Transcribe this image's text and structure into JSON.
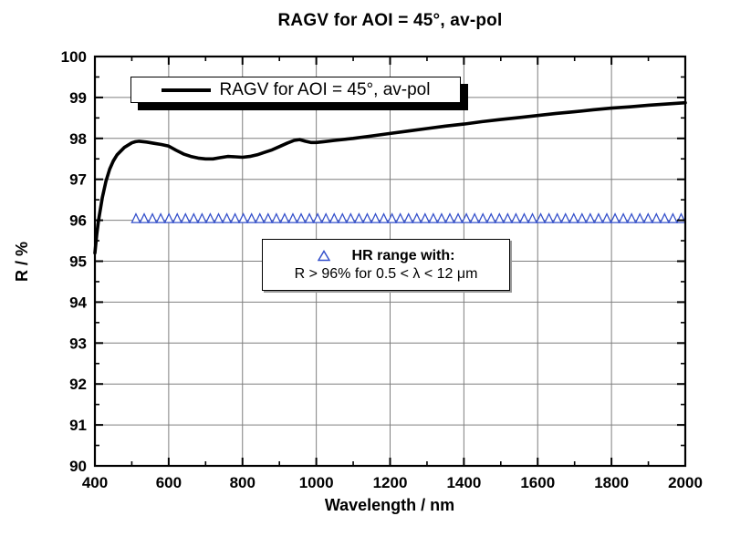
{
  "title": "RAGV for AOI = 45°, av-pol",
  "colors": {
    "background": "#ffffff",
    "curve": "#000000",
    "marker_blue": "#3450cb",
    "grid": "#7f7f7f",
    "frame": "#000000",
    "text": "#000000"
  },
  "legend": {
    "label": "RAGV for AOI = 45°, av-pol"
  },
  "annotation": {
    "marker": "open-triangle",
    "line1": "HR range with:",
    "line2": "R > 96% for 0.5 < λ < 12 μm"
  },
  "chart_data": {
    "type": "line",
    "title": "RAGV for AOI = 45°, av-pol",
    "xlabel": "Wavelength / nm",
    "ylabel": "R / %",
    "xlim": [
      400,
      2000
    ],
    "ylim": [
      90,
      100
    ],
    "x_major_ticks": [
      400,
      600,
      800,
      1000,
      1200,
      1400,
      1600,
      1800,
      2000
    ],
    "x_minor_step": 100,
    "y_major_ticks": [
      90,
      91,
      92,
      93,
      94,
      95,
      96,
      97,
      98,
      99,
      100
    ],
    "y_minor_step": 0.5,
    "grid": true,
    "legend_position": "top-left-inside",
    "series": [
      {
        "name": "RAGV for AOI = 45°, av-pol",
        "type": "line",
        "color": "#000000",
        "width": 3.6,
        "x": [
          400,
          405,
          410,
          420,
          430,
          440,
          450,
          460,
          480,
          500,
          510,
          520,
          540,
          560,
          580,
          600,
          620,
          640,
          660,
          680,
          700,
          720,
          740,
          760,
          780,
          800,
          820,
          840,
          860,
          880,
          900,
          920,
          940,
          955,
          970,
          985,
          1000,
          1020,
          1050,
          1080,
          1100,
          1150,
          1200,
          1250,
          1300,
          1350,
          1400,
          1450,
          1500,
          1550,
          1600,
          1650,
          1700,
          1750,
          1800,
          1850,
          1900,
          1950,
          2000
        ],
        "y": [
          95.2,
          95.65,
          96.0,
          96.55,
          96.95,
          97.25,
          97.45,
          97.6,
          97.78,
          97.89,
          97.92,
          97.93,
          97.91,
          97.88,
          97.85,
          97.81,
          97.71,
          97.62,
          97.56,
          97.52,
          97.5,
          97.5,
          97.53,
          97.56,
          97.55,
          97.54,
          97.56,
          97.6,
          97.66,
          97.72,
          97.8,
          97.88,
          97.95,
          97.97,
          97.93,
          97.9,
          97.9,
          97.92,
          97.95,
          97.98,
          98.0,
          98.06,
          98.12,
          98.18,
          98.24,
          98.3,
          98.35,
          98.41,
          98.46,
          98.51,
          98.56,
          98.61,
          98.65,
          98.7,
          98.74,
          98.77,
          98.81,
          98.84,
          98.87
        ]
      },
      {
        "name": "HR range with: R > 96% for 0.5 < λ < 12 μm",
        "type": "marker-triangle-open",
        "color": "#3450cb",
        "y_value": 96,
        "x_start": 500,
        "x_end": 2000,
        "marker_count": 67
      }
    ]
  }
}
